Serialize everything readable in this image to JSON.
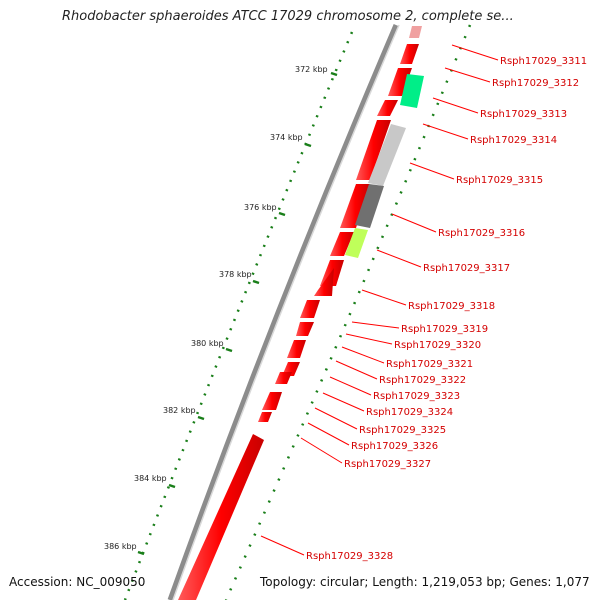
{
  "title": "Rhodobacter sphaeroides ATCC 17029 chromosome 2, complete se...",
  "accession": "Accession: NC_009050",
  "summary": "Topology: circular; Length: 1,219,053 bp; Genes: 1,077",
  "colors": {
    "gene": "#ff0000",
    "label": "#d40000",
    "tick": "#1a7f1a",
    "backbone": "#8c8c8c"
  },
  "ticks": [
    {
      "label": "372 kbp"
    },
    {
      "label": "374 kbp"
    },
    {
      "label": "376 kbp"
    },
    {
      "label": "378 kbp"
    },
    {
      "label": "380 kbp"
    },
    {
      "label": "382 kbp"
    },
    {
      "label": "384 kbp"
    },
    {
      "label": "386 kbp"
    }
  ],
  "genes": [
    {
      "label": "Rsph17029_3311"
    },
    {
      "label": "Rsph17029_3312"
    },
    {
      "label": "Rsph17029_3313"
    },
    {
      "label": "Rsph17029_3314"
    },
    {
      "label": "Rsph17029_3315"
    },
    {
      "label": "Rsph17029_3316"
    },
    {
      "label": "Rsph17029_3317"
    },
    {
      "label": "Rsph17029_3318"
    },
    {
      "label": "Rsph17029_3319"
    },
    {
      "label": "Rsph17029_3320"
    },
    {
      "label": "Rsph17029_3321"
    },
    {
      "label": "Rsph17029_3322"
    },
    {
      "label": "Rsph17029_3323"
    },
    {
      "label": "Rsph17029_3324"
    },
    {
      "label": "Rsph17029_3325"
    },
    {
      "label": "Rsph17029_3326"
    },
    {
      "label": "Rsph17029_3327"
    },
    {
      "label": "Rsph17029_3328"
    }
  ]
}
